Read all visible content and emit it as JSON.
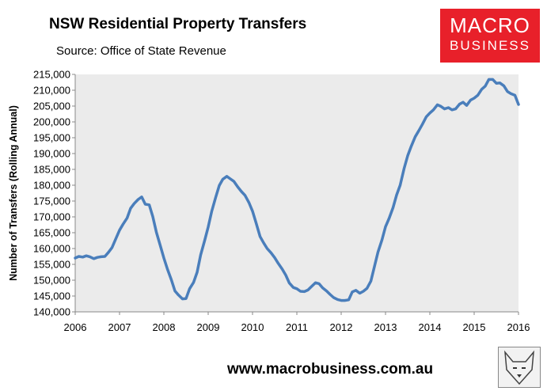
{
  "header": {
    "title": "NSW Residential Property Transfers",
    "subtitle": "Source: Office of State Revenue"
  },
  "logo": {
    "line1": "MACRO",
    "line2": "BUSINESS",
    "color": "#e8202a"
  },
  "footer": {
    "url": "www.macrobusiness.com.au"
  },
  "chart_data": {
    "type": "line",
    "title": "NSW Residential Property Transfers",
    "ylabel": "Number of Transfers (Rolling Annual)",
    "xlabel": "",
    "ylim": [
      140000,
      215000
    ],
    "xlim": [
      2006,
      2016
    ],
    "yticks": [
      140000,
      145000,
      150000,
      155000,
      160000,
      165000,
      170000,
      175000,
      180000,
      185000,
      190000,
      195000,
      200000,
      205000,
      210000,
      215000
    ],
    "ytick_labels": [
      "140,000",
      "145,000",
      "150,000",
      "155,000",
      "160,000",
      "165,000",
      "170,000",
      "175,000",
      "180,000",
      "185,000",
      "190,000",
      "195,000",
      "200,000",
      "205,000",
      "210,000",
      "215,000"
    ],
    "xticks": [
      2006,
      2007,
      2008,
      2009,
      2010,
      2011,
      2012,
      2013,
      2014,
      2015,
      2016
    ],
    "xtick_labels": [
      "2006",
      "2007",
      "2008",
      "2009",
      "2010",
      "2011",
      "2012",
      "2013",
      "2014",
      "2015",
      "2016"
    ],
    "grid": false,
    "line_color": "#4a7ebb",
    "plot_background": "#ebebeb",
    "series": [
      {
        "x": [
          2006.0,
          2006.08,
          2006.17,
          2006.25,
          2006.33,
          2006.42,
          2006.5,
          2006.58,
          2006.67,
          2006.75,
          2006.83,
          2006.92,
          2007.0,
          2007.08,
          2007.17,
          2007.25,
          2007.33,
          2007.42,
          2007.5,
          2007.58,
          2007.67,
          2007.75,
          2007.83,
          2007.92,
          2008.0,
          2008.08,
          2008.17,
          2008.25,
          2008.33,
          2008.42,
          2008.5,
          2008.58,
          2008.67,
          2008.75,
          2008.83,
          2008.92,
          2009.0,
          2009.08,
          2009.17,
          2009.25,
          2009.33,
          2009.42,
          2009.5,
          2009.58,
          2009.67,
          2009.75,
          2009.83,
          2009.92,
          2010.0,
          2010.08,
          2010.17,
          2010.25,
          2010.33,
          2010.42,
          2010.5,
          2010.58,
          2010.67,
          2010.75,
          2010.83,
          2010.92,
          2011.0,
          2011.08,
          2011.17,
          2011.25,
          2011.33,
          2011.42,
          2011.5,
          2011.58,
          2011.67,
          2011.75,
          2011.83,
          2011.92,
          2012.0,
          2012.08,
          2012.17,
          2012.25,
          2012.33,
          2012.42,
          2012.5,
          2012.58,
          2012.67,
          2012.75,
          2012.83,
          2012.92,
          2013.0,
          2013.08,
          2013.17,
          2013.25,
          2013.33,
          2013.42,
          2013.5,
          2013.58,
          2013.67,
          2013.75,
          2013.83,
          2013.92,
          2014.0,
          2014.08,
          2014.17,
          2014.25,
          2014.33,
          2014.42,
          2014.5,
          2014.58,
          2014.67,
          2014.75,
          2014.83,
          2014.92,
          2015.0,
          2015.08,
          2015.17,
          2015.25,
          2015.33,
          2015.42,
          2015.5,
          2015.58,
          2015.67,
          2015.75,
          2015.83,
          2015.92,
          2016.0
        ],
        "values": [
          157000,
          157500,
          157300,
          157700,
          157400,
          156800,
          157200,
          157400,
          157500,
          158800,
          160300,
          163200,
          165800,
          167700,
          169600,
          172700,
          174200,
          175500,
          176300,
          174000,
          173800,
          170100,
          165200,
          160900,
          157000,
          153500,
          150100,
          146600,
          145300,
          144100,
          144200,
          147300,
          149300,
          152500,
          158000,
          162500,
          166800,
          171800,
          176200,
          179900,
          181900,
          182800,
          182000,
          181200,
          179400,
          178000,
          176800,
          174500,
          171800,
          168100,
          163800,
          161800,
          160000,
          158600,
          157100,
          155300,
          153500,
          151600,
          149100,
          147700,
          147300,
          146500,
          146400,
          146900,
          148000,
          149200,
          148900,
          147600,
          146600,
          145500,
          144500,
          143900,
          143600,
          143600,
          143800,
          146300,
          146800,
          145900,
          146500,
          147400,
          149700,
          154300,
          158900,
          162700,
          166900,
          169500,
          172900,
          176900,
          180000,
          185300,
          189300,
          192300,
          195300,
          197200,
          199200,
          201600,
          202800,
          203800,
          205400,
          204900,
          204100,
          204500,
          203800,
          204100,
          205600,
          206200,
          205200,
          206900,
          207500,
          208400,
          210300,
          211300,
          213400,
          213400,
          212200,
          212300,
          211400,
          209600,
          208900,
          208400,
          205500
        ]
      }
    ]
  }
}
